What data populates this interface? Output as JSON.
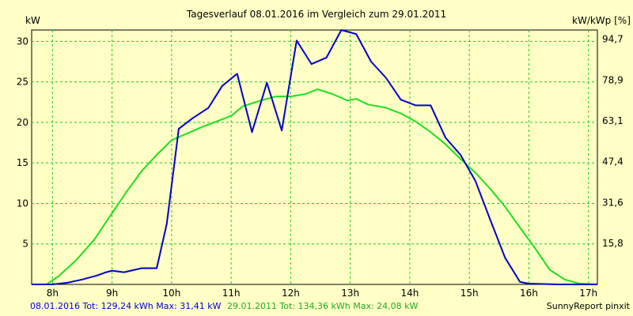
{
  "chart_data": {
    "type": "line",
    "title": "Tagesverlauf 08.01.2016 im Vergleich zum 29.01.2011",
    "ylabel_left": "kW",
    "ylabel_right": "kW/kWp [%]",
    "xlim": [
      7.65,
      17.15
    ],
    "ylim": [
      0,
      31.4
    ],
    "x_ticks": [
      8,
      9,
      10,
      11,
      12,
      13,
      14,
      15,
      16,
      17
    ],
    "x_tick_labels": [
      "8h",
      "9h",
      "10h",
      "11h",
      "12h",
      "13h",
      "14h",
      "15h",
      "16h",
      "17h"
    ],
    "y_ticks_left": [
      5,
      10,
      15,
      20,
      25,
      30
    ],
    "y_tick_labels_left": [
      "5",
      "10",
      "15",
      "20",
      "25",
      "30"
    ],
    "y_ticks_right": [
      15.8,
      31.6,
      47.4,
      63.1,
      78.9,
      94.7
    ],
    "y_tick_labels_right": [
      "15,8",
      "31,6",
      "47,4",
      "63,1",
      "78,9",
      "94,7"
    ],
    "right_axis_max": 98.2,
    "grid": true,
    "series": [
      {
        "color": "#0000cc",
        "points": [
          [
            7.65,
            0
          ],
          [
            8.0,
            0
          ],
          [
            8.25,
            0.2
          ],
          [
            8.5,
            0.6
          ],
          [
            8.75,
            1.1
          ],
          [
            8.9,
            1.5
          ],
          [
            9.0,
            1.7
          ],
          [
            9.2,
            1.5
          ],
          [
            9.5,
            2.0
          ],
          [
            9.75,
            2.0
          ],
          [
            9.92,
            7.5
          ],
          [
            10.12,
            19.2
          ],
          [
            10.35,
            20.5
          ],
          [
            10.62,
            21.8
          ],
          [
            10.85,
            24.5
          ],
          [
            11.1,
            26.0
          ],
          [
            11.35,
            18.8
          ],
          [
            11.6,
            24.9
          ],
          [
            11.85,
            19.0
          ],
          [
            12.1,
            30.1
          ],
          [
            12.35,
            27.2
          ],
          [
            12.6,
            28.0
          ],
          [
            12.85,
            31.4
          ],
          [
            13.1,
            30.9
          ],
          [
            13.35,
            27.5
          ],
          [
            13.6,
            25.5
          ],
          [
            13.85,
            22.8
          ],
          [
            14.1,
            22.1
          ],
          [
            14.35,
            22.1
          ],
          [
            14.6,
            18.1
          ],
          [
            14.85,
            16.0
          ],
          [
            15.1,
            12.8
          ],
          [
            15.35,
            8.0
          ],
          [
            15.6,
            3.3
          ],
          [
            15.85,
            0.3
          ],
          [
            16.0,
            0.1
          ],
          [
            16.5,
            0
          ],
          [
            17.15,
            0
          ]
        ]
      },
      {
        "color": "#22dd22",
        "points": [
          [
            7.65,
            0
          ],
          [
            7.9,
            0
          ],
          [
            8.1,
            1.0
          ],
          [
            8.4,
            3.0
          ],
          [
            8.7,
            5.5
          ],
          [
            9.0,
            8.8
          ],
          [
            9.25,
            11.5
          ],
          [
            9.5,
            14.0
          ],
          [
            9.75,
            16.0
          ],
          [
            10.0,
            17.8
          ],
          [
            10.25,
            18.6
          ],
          [
            10.5,
            19.4
          ],
          [
            10.75,
            20.1
          ],
          [
            11.0,
            20.8
          ],
          [
            11.2,
            22.0
          ],
          [
            11.5,
            22.7
          ],
          [
            11.75,
            23.2
          ],
          [
            12.0,
            23.2
          ],
          [
            12.25,
            23.5
          ],
          [
            12.45,
            24.1
          ],
          [
            12.7,
            23.5
          ],
          [
            12.95,
            22.7
          ],
          [
            13.1,
            22.9
          ],
          [
            13.3,
            22.2
          ],
          [
            13.6,
            21.8
          ],
          [
            13.85,
            21.1
          ],
          [
            14.1,
            20.1
          ],
          [
            14.35,
            18.8
          ],
          [
            14.6,
            17.3
          ],
          [
            14.85,
            15.5
          ],
          [
            15.1,
            13.8
          ],
          [
            15.35,
            11.8
          ],
          [
            15.6,
            9.6
          ],
          [
            15.85,
            7.0
          ],
          [
            16.1,
            4.5
          ],
          [
            16.35,
            1.8
          ],
          [
            16.6,
            0.6
          ],
          [
            16.85,
            0.1
          ],
          [
            17.15,
            0
          ]
        ]
      }
    ]
  },
  "footer": {
    "series1_text": "08.01.2016 Tot: 129,24 kWh Max: 31,41 kW",
    "series2_text": "29.01.2011 Tot: 134,36 kWh Max: 24,08 kW",
    "series1_color": "#0000cc",
    "series2_color": "#22aa22",
    "credit": "SunnyReport pinxit"
  }
}
